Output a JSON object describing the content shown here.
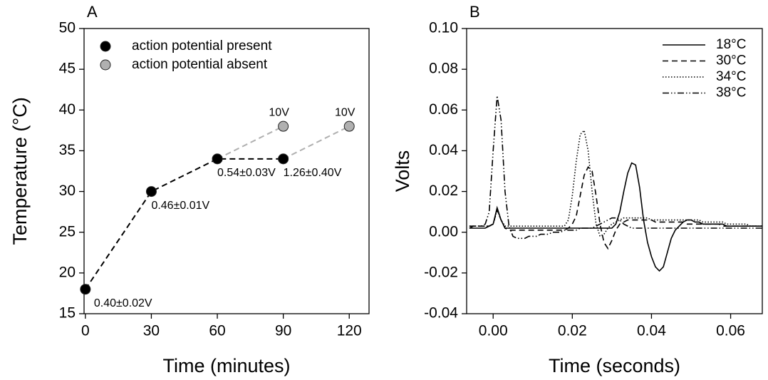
{
  "chart_data": [
    {
      "type": "scatter",
      "panel_label": "A",
      "xlabel": "Time (minutes)",
      "ylabel": "Temperature (°C)",
      "xlim": [
        -0.6,
        129
      ],
      "xticks": [
        0,
        30,
        60,
        90,
        120
      ],
      "ylim": [
        15,
        50
      ],
      "yticks": [
        15,
        20,
        25,
        30,
        35,
        40,
        45,
        50
      ],
      "legend": "upper left",
      "series": [
        {
          "name": "action potential present",
          "color": "#000000",
          "line_style": "dashed",
          "x": [
            0,
            30,
            60,
            90
          ],
          "values": [
            18,
            30,
            34,
            34
          ],
          "annotations": [
            "0.40±0.02V",
            "0.46±0.01V",
            "0.54±0.03V",
            "1.26±0.40V"
          ]
        },
        {
          "name": "action potential absent",
          "color": "#b0b0b0",
          "line_style": "dashed",
          "x": [
            90,
            120
          ],
          "values": [
            38,
            38
          ],
          "annotations": [
            "10V",
            "10V"
          ]
        }
      ]
    },
    {
      "type": "line",
      "panel_label": "B",
      "xlabel": "Time (seconds)",
      "ylabel": "Volts",
      "xlim": [
        -0.0067,
        0.068
      ],
      "xticks": [
        {
          "value": 0,
          "label": "0.00"
        },
        {
          "value": 0.02,
          "label": "0.02"
        },
        {
          "value": 0.04,
          "label": "0.04"
        },
        {
          "value": 0.06,
          "label": "0.06"
        }
      ],
      "ylim": [
        -0.04,
        0.1
      ],
      "yticks": [
        {
          "value": -0.04,
          "label": "-0.04"
        },
        {
          "value": -0.02,
          "label": "-0.02"
        },
        {
          "value": 0,
          "label": "0.00"
        },
        {
          "value": 0.02,
          "label": "0.02"
        },
        {
          "value": 0.04,
          "label": "0.04"
        },
        {
          "value": 0.06,
          "label": "0.06"
        },
        {
          "value": 0.08,
          "label": "0.08"
        },
        {
          "value": 0.1,
          "label": "0.10"
        }
      ],
      "legend": "upper right",
      "x": [
        -0.006,
        -0.005,
        -0.004,
        -0.003,
        -0.002,
        -0.001,
        0,
        0.001,
        0.002,
        0.003,
        0.004,
        0.005,
        0.006,
        0.007,
        0.008,
        0.009,
        0.01,
        0.011,
        0.012,
        0.013,
        0.014,
        0.015,
        0.016,
        0.017,
        0.018,
        0.019,
        0.02,
        0.021,
        0.022,
        0.023,
        0.024,
        0.025,
        0.026,
        0.027,
        0.028,
        0.029,
        0.03,
        0.031,
        0.032,
        0.033,
        0.034,
        0.035,
        0.036,
        0.037,
        0.038,
        0.039,
        0.04,
        0.041,
        0.042,
        0.043,
        0.044,
        0.045,
        0.046,
        0.047,
        0.048,
        0.049,
        0.05,
        0.051,
        0.052,
        0.053,
        0.054,
        0.055,
        0.056,
        0.057,
        0.058,
        0.059,
        0.06,
        0.061,
        0.062,
        0.063,
        0.064,
        0.065,
        0.066,
        0.067,
        0.068
      ],
      "series": [
        {
          "name": "18°C",
          "color": "#000000",
          "line_style": "solid",
          "values": [
            0.002,
            0.002,
            0.002,
            0.002,
            0.002,
            0.003,
            0.004,
            0.012,
            0.006,
            0.002,
            0.002,
            0.002,
            0.002,
            0.002,
            0.002,
            0.002,
            0.002,
            0.002,
            0.002,
            0.002,
            0.002,
            0.002,
            0.002,
            0.002,
            0.002,
            0.002,
            0.002,
            0.002,
            0.002,
            0.002,
            0.002,
            0.002,
            0.002,
            0.002,
            0.002,
            0.002,
            0.002,
            0.004,
            0.01,
            0.02,
            0.029,
            0.034,
            0.033,
            0.022,
            0.006,
            -0.005,
            -0.012,
            -0.017,
            -0.019,
            -0.017,
            -0.01,
            -0.003,
            0.001,
            0.003,
            0.005,
            0.006,
            0.006,
            0.005,
            0.005,
            0.004,
            0.004,
            0.004,
            0.004,
            0.004,
            0.004,
            0.003,
            0.003,
            0.003,
            0.003,
            0.003,
            0.003,
            0.003,
            0.003,
            0.003,
            0.003
          ]
        },
        {
          "name": "30°C",
          "color": "#000000",
          "line_style": "dashed",
          "values": [
            0.002,
            0.003,
            0.003,
            0.003,
            0.003,
            0.003,
            0.004,
            0.011,
            0.006,
            0.002,
            0.001,
            0.001,
            0.001,
            0.001,
            0.001,
            0.001,
            0.001,
            0.001,
            0.001,
            0.001,
            0.001,
            0.001,
            0.001,
            0.001,
            0.001,
            0.002,
            0.004,
            0.008,
            0.018,
            0.028,
            0.032,
            0.03,
            0.018,
            0.004,
            -0.005,
            -0.008,
            -0.004,
            0.001,
            0.004,
            0.005,
            0.006,
            0.006,
            0.006,
            0.006,
            0.006,
            0.006,
            0.006,
            0.005,
            0.005,
            0.005,
            0.005,
            0.005,
            0.005,
            0.005,
            0.005,
            0.004,
            0.004,
            0.004,
            0.004,
            0.004,
            0.004,
            0.004,
            0.004,
            0.004,
            0.003,
            0.003,
            0.003,
            0.003,
            0.003,
            0.003,
            0.003,
            0.003,
            0.003,
            0.003,
            0.003
          ]
        },
        {
          "name": "34°C",
          "color": "#000000",
          "line_style": "dotted",
          "values": [
            0.003,
            0.003,
            0.003,
            0.003,
            0.003,
            0.003,
            0.004,
            0.011,
            0.006,
            0.003,
            0.003,
            0.003,
            0.003,
            0.003,
            0.003,
            0.003,
            0.003,
            0.003,
            0.003,
            0.003,
            0.003,
            0.003,
            0.003,
            0.003,
            0.003,
            0.006,
            0.018,
            0.035,
            0.048,
            0.05,
            0.04,
            0.02,
            0.004,
            -0.002,
            -0.001,
            0.002,
            0.004,
            0.005,
            0.006,
            0.007,
            0.007,
            0.007,
            0.007,
            0.007,
            0.007,
            0.007,
            0.006,
            0.006,
            0.006,
            0.006,
            0.006,
            0.006,
            0.006,
            0.006,
            0.006,
            0.006,
            0.006,
            0.006,
            0.006,
            0.005,
            0.005,
            0.005,
            0.005,
            0.005,
            0.005,
            0.004,
            0.004,
            0.004,
            0.004,
            0.004,
            0.004,
            0.003,
            0.003,
            0.003,
            0.003
          ]
        },
        {
          "name": "38°C",
          "color": "#000000",
          "line_style": "dashdot",
          "values": [
            0.003,
            0.003,
            0.003,
            0.003,
            0.004,
            0.01,
            0.04,
            0.067,
            0.055,
            0.02,
            0.003,
            -0.002,
            -0.003,
            -0.003,
            -0.003,
            -0.002,
            -0.002,
            -0.002,
            -0.001,
            -0.001,
            -0.001,
            0,
            0,
            0,
            0.001,
            0.001,
            0.001,
            0.001,
            0.002,
            0.002,
            0.002,
            0.002,
            0.003,
            0.004,
            0.005,
            0.006,
            0.007,
            0.007,
            0.006,
            0.004,
            0.003,
            0.002,
            0.002,
            0.002,
            0.002,
            0.002,
            0.002,
            0.002,
            0.002,
            0.002,
            0.002,
            0.002,
            0.002,
            0.002,
            0.002,
            0.002,
            0.002,
            0.002,
            0.002,
            0.002,
            0.002,
            0.002,
            0.002,
            0.002,
            0.002,
            0.002,
            0.002,
            0.002,
            0.002,
            0.002,
            0.002,
            0.002,
            0.002,
            0.002,
            0.002
          ]
        }
      ]
    }
  ]
}
